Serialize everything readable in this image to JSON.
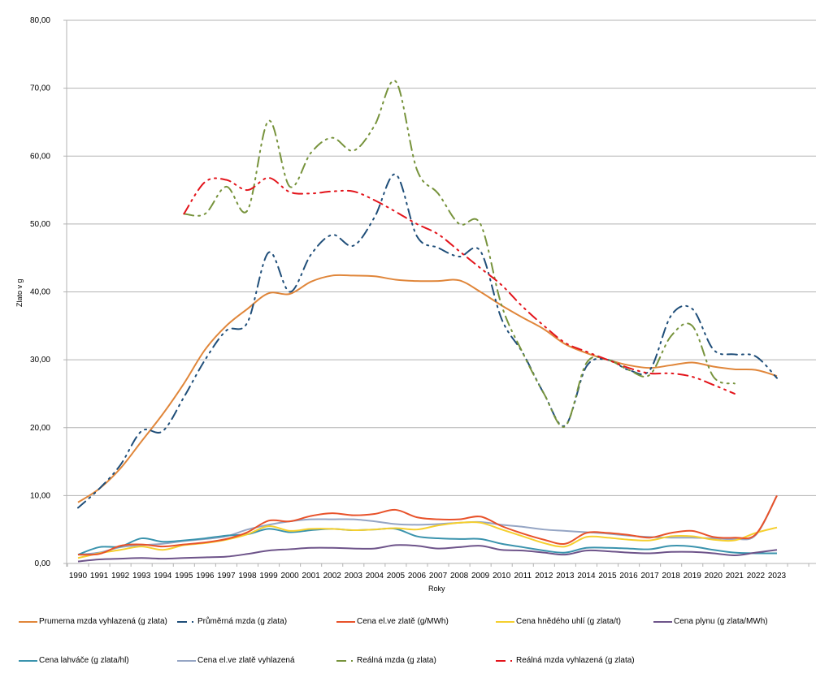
{
  "chart_data": {
    "type": "line",
    "title": "",
    "xlabel": "Roky",
    "ylabel": "Zlato v g",
    "ylim": [
      0,
      80
    ],
    "yticks": [
      "0,00",
      "10,00",
      "20,00",
      "30,00",
      "40,00",
      "50,00",
      "60,00",
      "70,00",
      "80,00"
    ],
    "grid": true,
    "legend_position": "bottom",
    "x": [
      1990,
      1991,
      1992,
      1993,
      1994,
      1995,
      1996,
      1997,
      1998,
      1999,
      2000,
      2001,
      2002,
      2003,
      2004,
      2005,
      2006,
      2007,
      2008,
      2009,
      2010,
      2011,
      2012,
      2013,
      2014,
      2015,
      2016,
      2017,
      2018,
      2019,
      2020,
      2021,
      2022,
      2023
    ],
    "series": [
      {
        "name": "Prumerna mzda vyhlazená (g zlata)",
        "color": "#e0863a",
        "style": "solid",
        "values": [
          9,
          11,
          14,
          18,
          22,
          26.5,
          31.5,
          35,
          37.5,
          39.8,
          39.7,
          41.5,
          42.4,
          42.4,
          42.3,
          41.8,
          41.6,
          41.6,
          41.7,
          40,
          38,
          36.2,
          34.5,
          32.3,
          31,
          30,
          29.2,
          28.8,
          29.2,
          29.6,
          29,
          28.6,
          28.5,
          27.6
        ]
      },
      {
        "name": "Průměrná mzda (g zlata)",
        "color": "#1f4e79",
        "style": "dashdot",
        "values": [
          8.2,
          11,
          14.5,
          19.5,
          19.5,
          24.5,
          30,
          34.3,
          35.5,
          45.8,
          40,
          45.5,
          48.4,
          46.8,
          51,
          57.3,
          48.2,
          46.5,
          45.2,
          46,
          36,
          31,
          25,
          20.3,
          29,
          30,
          28.5,
          28.5,
          36.5,
          37.5,
          31.5,
          30.8,
          30.5,
          27.3
        ]
      },
      {
        "name": "Cena el.ve zlatě (g/MWh)",
        "color": "#e8522a",
        "style": "solid",
        "values": [
          1.3,
          1.4,
          2.6,
          2.8,
          2.5,
          2.8,
          3.1,
          3.6,
          4.6,
          6.3,
          6.2,
          7.0,
          7.4,
          7.1,
          7.3,
          7.9,
          6.8,
          6.5,
          6.5,
          6.9,
          5.5,
          4.4,
          3.5,
          2.9,
          4.5,
          4.5,
          4.2,
          3.8,
          4.5,
          4.8,
          3.9,
          3.8,
          4.3,
          10
        ]
      },
      {
        "name": "Cena hnědého uhlí (g zlata/t)",
        "color": "#f5cf2e",
        "style": "solid",
        "values": [
          0.8,
          1.5,
          2.0,
          2.5,
          2.0,
          2.7,
          3.0,
          3.5,
          4.3,
          5.5,
          4.8,
          5.1,
          5.1,
          4.9,
          5.0,
          5.2,
          5.0,
          5.6,
          6.0,
          6.0,
          5.0,
          4.0,
          3.0,
          2.5,
          3.9,
          3.8,
          3.5,
          3.4,
          4.0,
          4.0,
          3.5,
          3.4,
          4.5,
          5.3
        ]
      },
      {
        "name": "Cena plynu (g zlata/MWh)",
        "color": "#6e548a",
        "style": "solid",
        "values": [
          0.3,
          0.6,
          0.7,
          0.8,
          0.7,
          0.8,
          0.9,
          1.0,
          1.4,
          1.9,
          2.1,
          2.3,
          2.3,
          2.2,
          2.2,
          2.7,
          2.6,
          2.2,
          2.4,
          2.6,
          2.0,
          1.9,
          1.6,
          1.3,
          1.9,
          1.8,
          1.6,
          1.5,
          1.7,
          1.7,
          1.5,
          1.2,
          1.6,
          2.0
        ]
      },
      {
        "name": "Cena lahváče (g zlata/hl)",
        "color": "#3a93ad",
        "style": "solid",
        "values": [
          1.3,
          2.4,
          2.5,
          3.7,
          3.2,
          3.4,
          3.7,
          4.1,
          4.3,
          5.1,
          4.6,
          4.9,
          5.1,
          4.9,
          5.0,
          5.1,
          4.0,
          3.7,
          3.6,
          3.6,
          2.9,
          2.4,
          1.9,
          1.6,
          2.3,
          2.3,
          2.2,
          2.1,
          2.6,
          2.5,
          2.0,
          1.6,
          1.5,
          1.5
        ]
      },
      {
        "name": "Cena el.ve zlatě vyhlazená",
        "color": "#95a5c4",
        "style": "solid",
        "values": [
          1.3,
          1.6,
          2.4,
          2.7,
          2.9,
          3.3,
          3.6,
          4.0,
          5.0,
          5.7,
          6.2,
          6.5,
          6.5,
          6.5,
          6.2,
          5.8,
          5.7,
          5.8,
          6.0,
          6.1,
          5.7,
          5.4,
          5.0,
          4.8,
          4.6,
          4.4,
          4.1,
          3.9,
          3.8,
          3.8,
          3.7,
          3.6,
          4.2,
          10
        ]
      },
      {
        "name": "Reálná mzda (g zlata)",
        "color": "#77933c",
        "style": "dashdot",
        "values": [
          null,
          null,
          null,
          null,
          null,
          51.5,
          51.5,
          55.5,
          52,
          65.2,
          55.5,
          60.5,
          62.7,
          60.8,
          64.5,
          71,
          58,
          54.5,
          50,
          50,
          38,
          31,
          25,
          20.2,
          29.5,
          30,
          28.5,
          27.8,
          33.5,
          35,
          27.5,
          26.5,
          null,
          null
        ]
      },
      {
        "name": "Reálná mzda vyhlazená (g zlata)",
        "color": "#e3141b",
        "style": "dashdot",
        "values": [
          null,
          null,
          null,
          null,
          null,
          51.5,
          56.2,
          56.5,
          55,
          56.8,
          54.7,
          54.5,
          54.8,
          54.8,
          53.5,
          51.8,
          50,
          48.5,
          46,
          43.5,
          41,
          37.8,
          35,
          32.5,
          31.2,
          30,
          28.8,
          28,
          28,
          27.5,
          26.3,
          25,
          null,
          null
        ]
      }
    ]
  }
}
